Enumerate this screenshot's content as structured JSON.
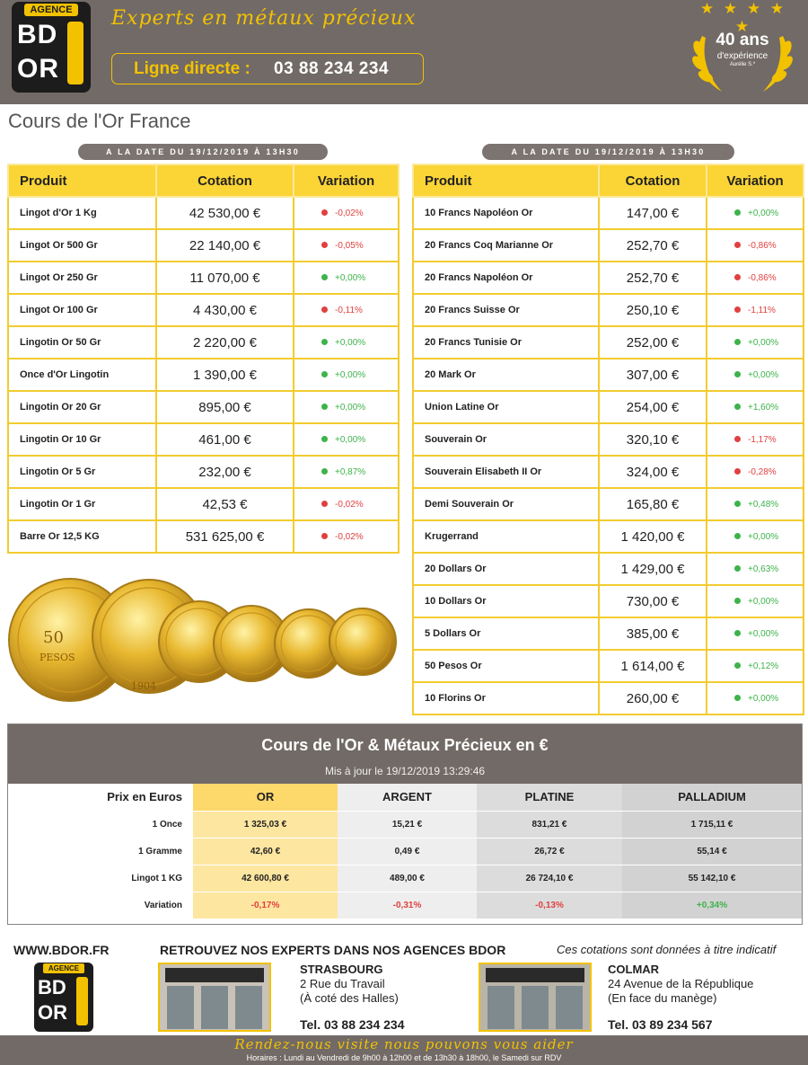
{
  "header": {
    "logo_agence": "AGENCE",
    "logo_bd": "BD",
    "logo_or": "OR",
    "tagline": "Experts en métaux précieux",
    "phone_label": "Ligne directe :",
    "phone_number": "03 88 234 234",
    "badge_years": "40 ans",
    "badge_experience": "d'expérience",
    "badge_signature": "Aurélie S.*",
    "colors": {
      "brand_gray": "#726a66",
      "brand_yellow": "#f2c200"
    }
  },
  "page_title": "Cours de l'Or France",
  "left_table": {
    "date": "A LA DATE DU 19/12/2019 À 13H30",
    "headers": [
      "Produit",
      "Cotation",
      "Variation"
    ],
    "rows": [
      {
        "product": "Lingot d'Or 1 Kg",
        "price": "42 530,00 €",
        "variation": "-0,02%",
        "trend": "down"
      },
      {
        "product": "Lingot Or 500 Gr",
        "price": "22 140,00 €",
        "variation": "-0,05%",
        "trend": "down"
      },
      {
        "product": "Lingot Or 250 Gr",
        "price": "11 070,00 €",
        "variation": "+0,00%",
        "trend": "up"
      },
      {
        "product": "Lingot Or 100 Gr",
        "price": "4 430,00 €",
        "variation": "-0,11%",
        "trend": "down"
      },
      {
        "product": "Lingotin Or 50 Gr",
        "price": "2 220,00 €",
        "variation": "+0,00%",
        "trend": "up"
      },
      {
        "product": "Once d'Or Lingotin",
        "price": "1 390,00 €",
        "variation": "+0,00%",
        "trend": "up"
      },
      {
        "product": "Lingotin Or 20 Gr",
        "price": "895,00 €",
        "variation": "+0,00%",
        "trend": "up"
      },
      {
        "product": "Lingotin Or 10 Gr",
        "price": "461,00 €",
        "variation": "+0,00%",
        "trend": "up"
      },
      {
        "product": "Lingotin Or 5 Gr",
        "price": "232,00 €",
        "variation": "+0,87%",
        "trend": "up"
      },
      {
        "product": "Lingotin Or 1 Gr",
        "price": "42,53 €",
        "variation": "-0,02%",
        "trend": "down"
      },
      {
        "product": "Barre Or 12,5 KG",
        "price": "531 625,00 €",
        "variation": "-0,02%",
        "trend": "down"
      }
    ]
  },
  "right_table": {
    "date": "A LA DATE DU 19/12/2019 À 13H30",
    "headers": [
      "Produit",
      "Cotation",
      "Variation"
    ],
    "rows": [
      {
        "product": "10 Francs Napoléon Or",
        "price": "147,00 €",
        "variation": "+0,00%",
        "trend": "up"
      },
      {
        "product": "20 Francs Coq Marianne Or",
        "price": "252,70 €",
        "variation": "-0,86%",
        "trend": "down"
      },
      {
        "product": "20 Francs Napoléon Or",
        "price": "252,70 €",
        "variation": "-0,86%",
        "trend": "down"
      },
      {
        "product": "20 Francs Suisse Or",
        "price": "250,10 €",
        "variation": "-1,11%",
        "trend": "down"
      },
      {
        "product": "20 Francs Tunisie Or",
        "price": "252,00 €",
        "variation": "+0,00%",
        "trend": "up"
      },
      {
        "product": "20 Mark Or",
        "price": "307,00 €",
        "variation": "+0,00%",
        "trend": "up"
      },
      {
        "product": "Union Latine Or",
        "price": "254,00 €",
        "variation": "+1,60%",
        "trend": "up"
      },
      {
        "product": "Souverain Or",
        "price": "320,10 €",
        "variation": "-1,17%",
        "trend": "down"
      },
      {
        "product": "Souverain Elisabeth II Or",
        "price": "324,00 €",
        "variation": "-0,28%",
        "trend": "down"
      },
      {
        "product": "Demi Souverain Or",
        "price": "165,80 €",
        "variation": "+0,48%",
        "trend": "up"
      },
      {
        "product": "Krugerrand",
        "price": "1 420,00 €",
        "variation": "+0,00%",
        "trend": "up"
      },
      {
        "product": "20 Dollars Or",
        "price": "1 429,00 €",
        "variation": "+0,63%",
        "trend": "up"
      },
      {
        "product": "10 Dollars Or",
        "price": "730,00 €",
        "variation": "+0,00%",
        "trend": "up"
      },
      {
        "product": "5 Dollars Or",
        "price": "385,00 €",
        "variation": "+0,00%",
        "trend": "up"
      },
      {
        "product": "50 Pesos Or",
        "price": "1 614,00 €",
        "variation": "+0,12%",
        "trend": "up"
      },
      {
        "product": "10 Florins Or",
        "price": "260,00 €",
        "variation": "+0,00%",
        "trend": "up"
      }
    ]
  },
  "coins": {
    "coin_text_1": "50",
    "coin_text_2": "PESOS",
    "coin_text_3": "1904"
  },
  "metals": {
    "title": "Cours de l'Or & Métaux Précieux en €",
    "updated": "Mis à jour le 19/12/2019 13:29:46",
    "headers": [
      "Prix en Euros",
      "OR",
      "ARGENT",
      "PLATINE",
      "PALLADIUM"
    ],
    "rows": [
      {
        "label": "1 Once",
        "or": "1 325,03 €",
        "argent": "15,21 €",
        "platine": "831,21 €",
        "palladium": "1 715,11 €"
      },
      {
        "label": "1 Gramme",
        "or": "42,60 €",
        "argent": "0,49 €",
        "platine": "26,72 €",
        "palladium": "55,14 €"
      },
      {
        "label": "Lingot 1 KG",
        "or": "42 600,80 €",
        "argent": "489,00 €",
        "platine": "26 724,10 €",
        "palladium": "55 142,10 €"
      },
      {
        "label": "Variation",
        "or": "-0,17%",
        "argent": "-0,31%",
        "platine": "-0,13%",
        "palladium": "+0,34%",
        "trends": [
          "down",
          "down",
          "down",
          "up"
        ]
      }
    ]
  },
  "footer": {
    "website": "WWW.BDOR.FR",
    "retrouvez": "RETROUVEZ NOS EXPERTS DANS NOS AGENCES BDOR",
    "disclaimer": "Ces cotations sont données à titre indicatif",
    "agencies": [
      {
        "city": "STRASBOURG",
        "address_1": "2 Rue du Travail",
        "address_2": "(À coté des Halles)",
        "tel": "Tel. 03 88 234 234"
      },
      {
        "city": "COLMAR",
        "address_1": "24 Avenue de la République",
        "address_2": "(En face du manège)",
        "tel": "Tel. 03 89 234 567"
      }
    ],
    "rdv": "Rendez-nous visite nous pouvons vous aider",
    "hours": "Horaires : Lundi au Vendredi de 9h00 à 12h00 et de 13h30 à 18h00, le Samedi sur RDV"
  }
}
